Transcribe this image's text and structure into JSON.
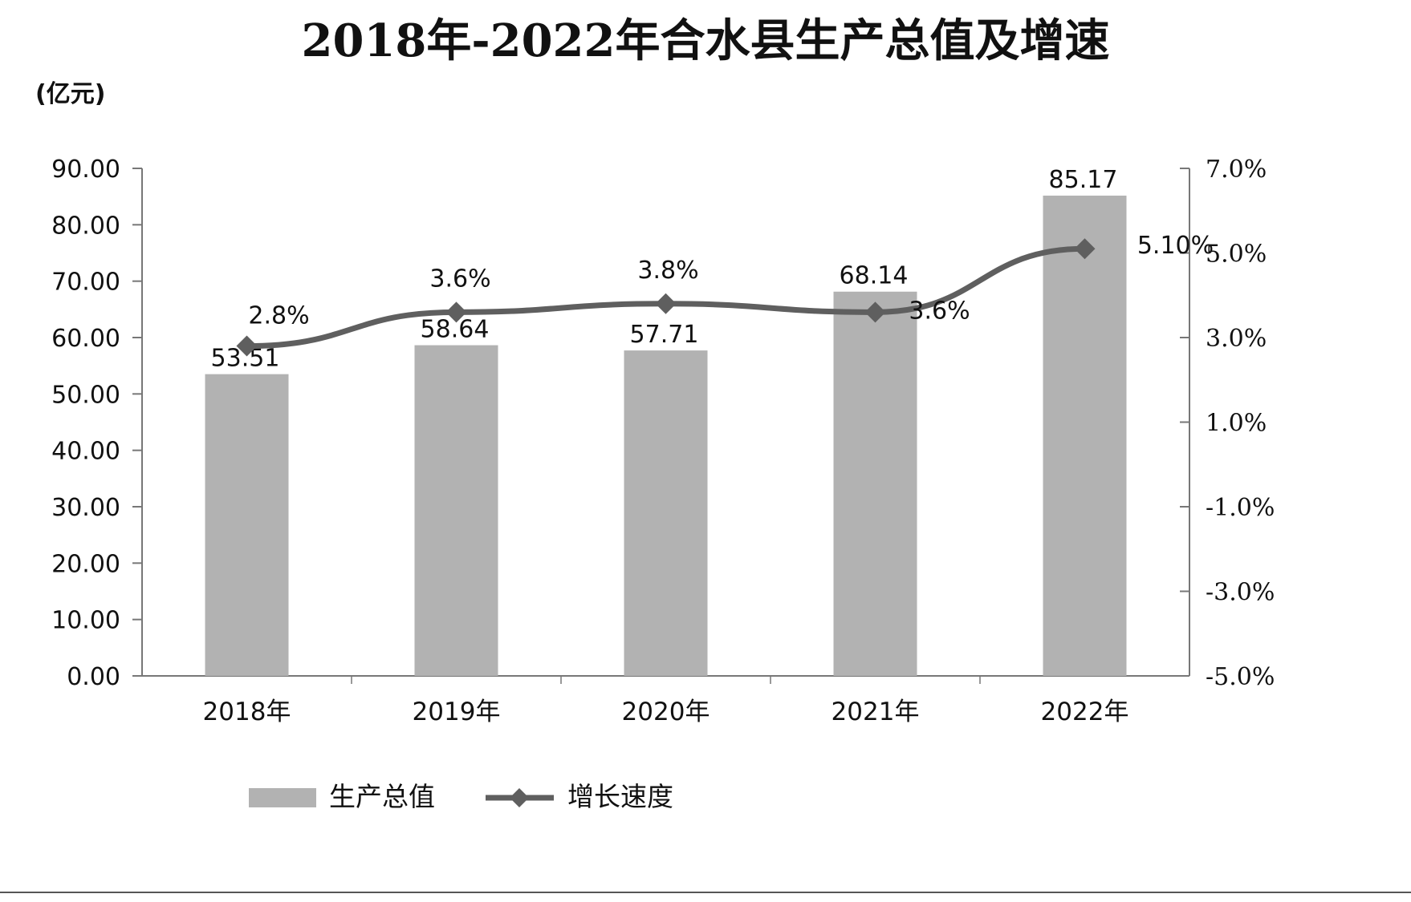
{
  "chart_data": {
    "type": "bar",
    "title": "2018年-2022年合水县生产总值及增速",
    "y_unit_label": "(亿元)",
    "categories": [
      "2018年",
      "2019年",
      "2020年",
      "2021年",
      "2022年"
    ],
    "series": [
      {
        "name": "生产总值",
        "type": "bar",
        "axis": "left",
        "values": [
          53.51,
          58.64,
          57.71,
          68.14,
          85.17
        ],
        "labels": [
          "53.51",
          "58.64",
          "57.71",
          "68.14",
          "85.17"
        ],
        "color": "#b2b2b2"
      },
      {
        "name": "增长速度",
        "type": "line",
        "axis": "right",
        "marker": "diamond",
        "values": [
          2.8,
          3.6,
          3.8,
          3.6,
          5.1
        ],
        "labels": [
          "2.8%",
          "3.6%",
          "3.8%",
          "3.6%",
          "5.10%"
        ],
        "color": "#5f5f5f"
      }
    ],
    "y_left": {
      "min": 0,
      "max": 90,
      "ticks": [
        "0.00",
        "10.00",
        "20.00",
        "30.00",
        "40.00",
        "50.00",
        "60.00",
        "70.00",
        "80.00",
        "90.00"
      ]
    },
    "y_right": {
      "min": -5,
      "max": 7,
      "ticks": [
        "-5.0%",
        "-3.0%",
        "-1.0%",
        "1.0%",
        "3.0%",
        "5.0%",
        "7.0%"
      ]
    },
    "grid": false,
    "legend_position": "bottom-left"
  }
}
